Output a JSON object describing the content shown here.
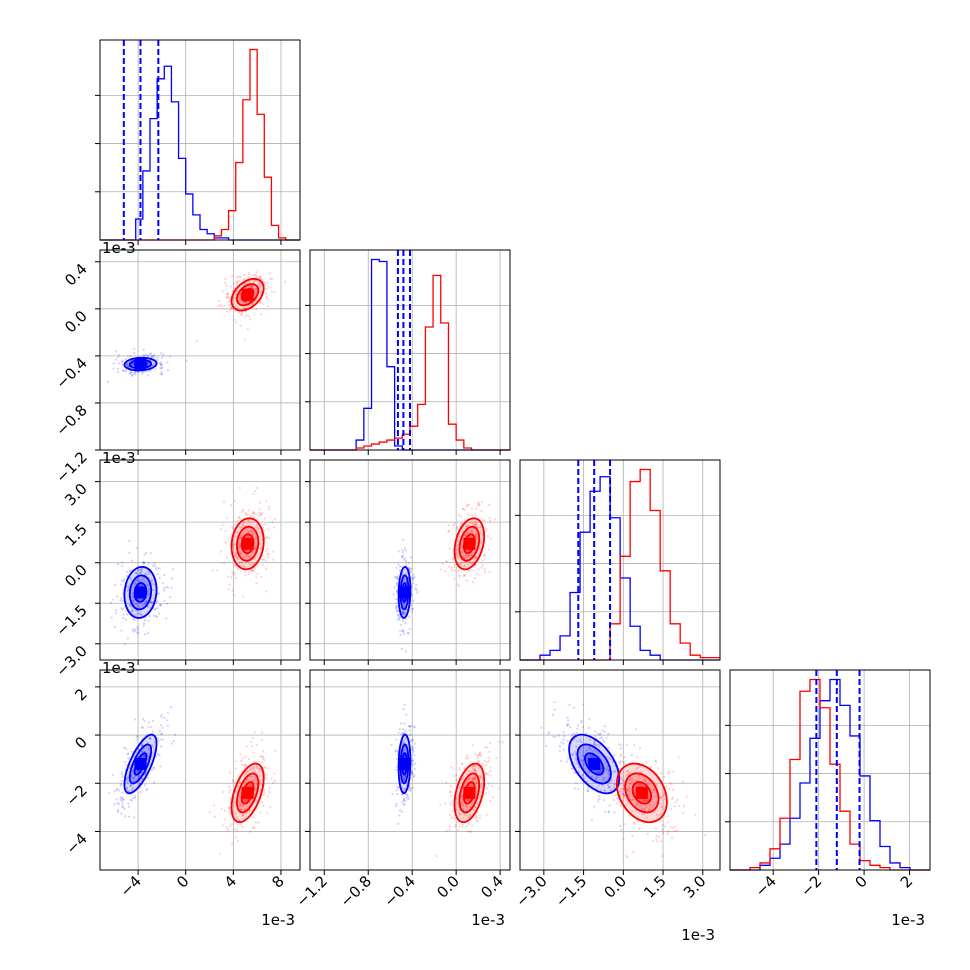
{
  "chart_data": {
    "type": "corner",
    "n_params": 4,
    "grid": true,
    "colors": {
      "set_a": "#0000ff",
      "set_b": "#ff0000"
    },
    "offset_label": "1e-3",
    "axes": [
      {
        "id": "p1",
        "xlim": [
          -7.2,
          9.6
        ],
        "ticks": [
          -4,
          0,
          4,
          8
        ],
        "tick_labels": [
          "−4",
          "0",
          "4",
          "8"
        ]
      },
      {
        "id": "p2",
        "xlim": [
          -1.33,
          0.49
        ],
        "ylim": [
          -1.2,
          0.5
        ],
        "ticks": [
          -1.2,
          -0.8,
          -0.4,
          0.0,
          0.4
        ],
        "tick_labels": [
          "−1.2",
          "−0.8",
          "−0.4",
          "0.0",
          "0.4"
        ]
      },
      {
        "id": "p3",
        "xlim": [
          -3.9,
          3.65
        ],
        "ylim": [
          -3.6,
          3.8
        ],
        "ticks": [
          -3.0,
          -1.5,
          0.0,
          1.5,
          3.0
        ],
        "tick_labels": [
          "−3.0",
          "−1.5",
          "0.0",
          "1.5",
          "3.0"
        ]
      },
      {
        "id": "p4",
        "xlim": [
          -5.9,
          2.9
        ],
        "ylim": [
          -5.6,
          2.7
        ],
        "ticks": [
          -4,
          -2,
          0,
          2
        ],
        "tick_labels": [
          "−4",
          "−2",
          "0",
          "2"
        ]
      }
    ],
    "set_a": {
      "mean": [
        -3.8,
        -0.47,
        -1.1,
        -1.2
      ],
      "std": [
        1.0,
        0.04,
        0.7,
        0.9
      ],
      "quantiles": [
        [
          -5.2,
          -3.8,
          -2.3
        ],
        [
          -0.53,
          -0.48,
          -0.42
        ],
        [
          -1.7,
          -1.1,
          -0.5
        ],
        [
          -2.1,
          -1.2,
          -0.2
        ]
      ],
      "corr": {
        "p1-p2": 0.1,
        "p1-p3": 0.1,
        "p1-p4": 0.7,
        "p2-p3": 0.1,
        "p2-p4": 0.1,
        "p3-p4": -0.5
      },
      "hist": [
        {
          "x0": -7.2,
          "dx": 0.6,
          "counts": [
            0,
            0,
            0,
            0,
            0,
            0.1,
            0.33,
            0.58,
            0.77,
            0.83,
            0.66,
            0.39,
            0.22,
            0.12,
            0.05,
            0.03,
            0.01,
            0.01,
            0,
            0,
            0,
            0,
            0,
            0,
            0,
            0,
            0,
            0
          ]
        },
        {
          "x0": -1.33,
          "dx": 0.07,
          "counts": [
            0,
            0,
            0,
            0,
            0,
            0,
            0.05,
            0.21,
            0.96,
            0.95,
            0.42,
            0.02,
            0,
            0,
            0,
            0,
            0,
            0,
            0,
            0,
            0,
            0,
            0,
            0,
            0,
            0
          ]
        },
        {
          "x0": -3.9,
          "dx": 0.378,
          "counts": [
            0,
            0,
            0.02,
            0.04,
            0.1,
            0.28,
            0.53,
            0.7,
            0.76,
            0.59,
            0.34,
            0.14,
            0.04,
            0.02,
            0,
            0,
            0,
            0,
            0,
            0
          ]
        },
        {
          "x0": -5.9,
          "dx": 0.44,
          "counts": [
            0,
            0,
            0,
            0.02,
            0.05,
            0.11,
            0.22,
            0.37,
            0.56,
            0.72,
            0.81,
            0.7,
            0.57,
            0.4,
            0.21,
            0.1,
            0.03,
            0.01,
            0,
            0
          ]
        }
      ]
    },
    "set_b": {
      "mean": [
        5.2,
        0.12,
        0.7,
        -2.4
      ],
      "std": [
        1.0,
        0.1,
        0.7,
        0.9
      ],
      "corr": {
        "p1-p2": 0.4,
        "p1-p3": 0.1,
        "p1-p4": 0.5,
        "p2-p3": 0.3,
        "p2-p4": 0.4,
        "p3-p4": -0.3
      },
      "hist": [
        {
          "x0": -7.2,
          "dx": 0.6,
          "counts": [
            0,
            0,
            0,
            0,
            0,
            0,
            0,
            0,
            0,
            0,
            0,
            0,
            0,
            0,
            0,
            0,
            0.02,
            0.05,
            0.14,
            0.37,
            0.67,
            0.91,
            0.6,
            0.3,
            0.07,
            0.01,
            0,
            0
          ]
        },
        {
          "x0": -1.33,
          "dx": 0.07,
          "counts": [
            0,
            0,
            0,
            0,
            0,
            0,
            0.01,
            0.02,
            0.03,
            0.04,
            0.05,
            0.06,
            0.08,
            0.12,
            0.23,
            0.62,
            0.88,
            0.64,
            0.13,
            0.05,
            0.01,
            0,
            0,
            0,
            0,
            0
          ]
        },
        {
          "x0": -3.9,
          "dx": 0.378,
          "counts": [
            0,
            0,
            0,
            0,
            0,
            0,
            0,
            0,
            0,
            0.15,
            0.43,
            0.74,
            0.79,
            0.62,
            0.37,
            0.15,
            0.07,
            0.02,
            0.01,
            0.01
          ]
        },
        {
          "x0": -5.9,
          "dx": 0.44,
          "counts": [
            0,
            0,
            0.01,
            0.03,
            0.09,
            0.22,
            0.47,
            0.76,
            0.81,
            0.69,
            0.45,
            0.25,
            0.11,
            0.04,
            0.02,
            0.01,
            0,
            0,
            0,
            0
          ]
        }
      ]
    }
  }
}
